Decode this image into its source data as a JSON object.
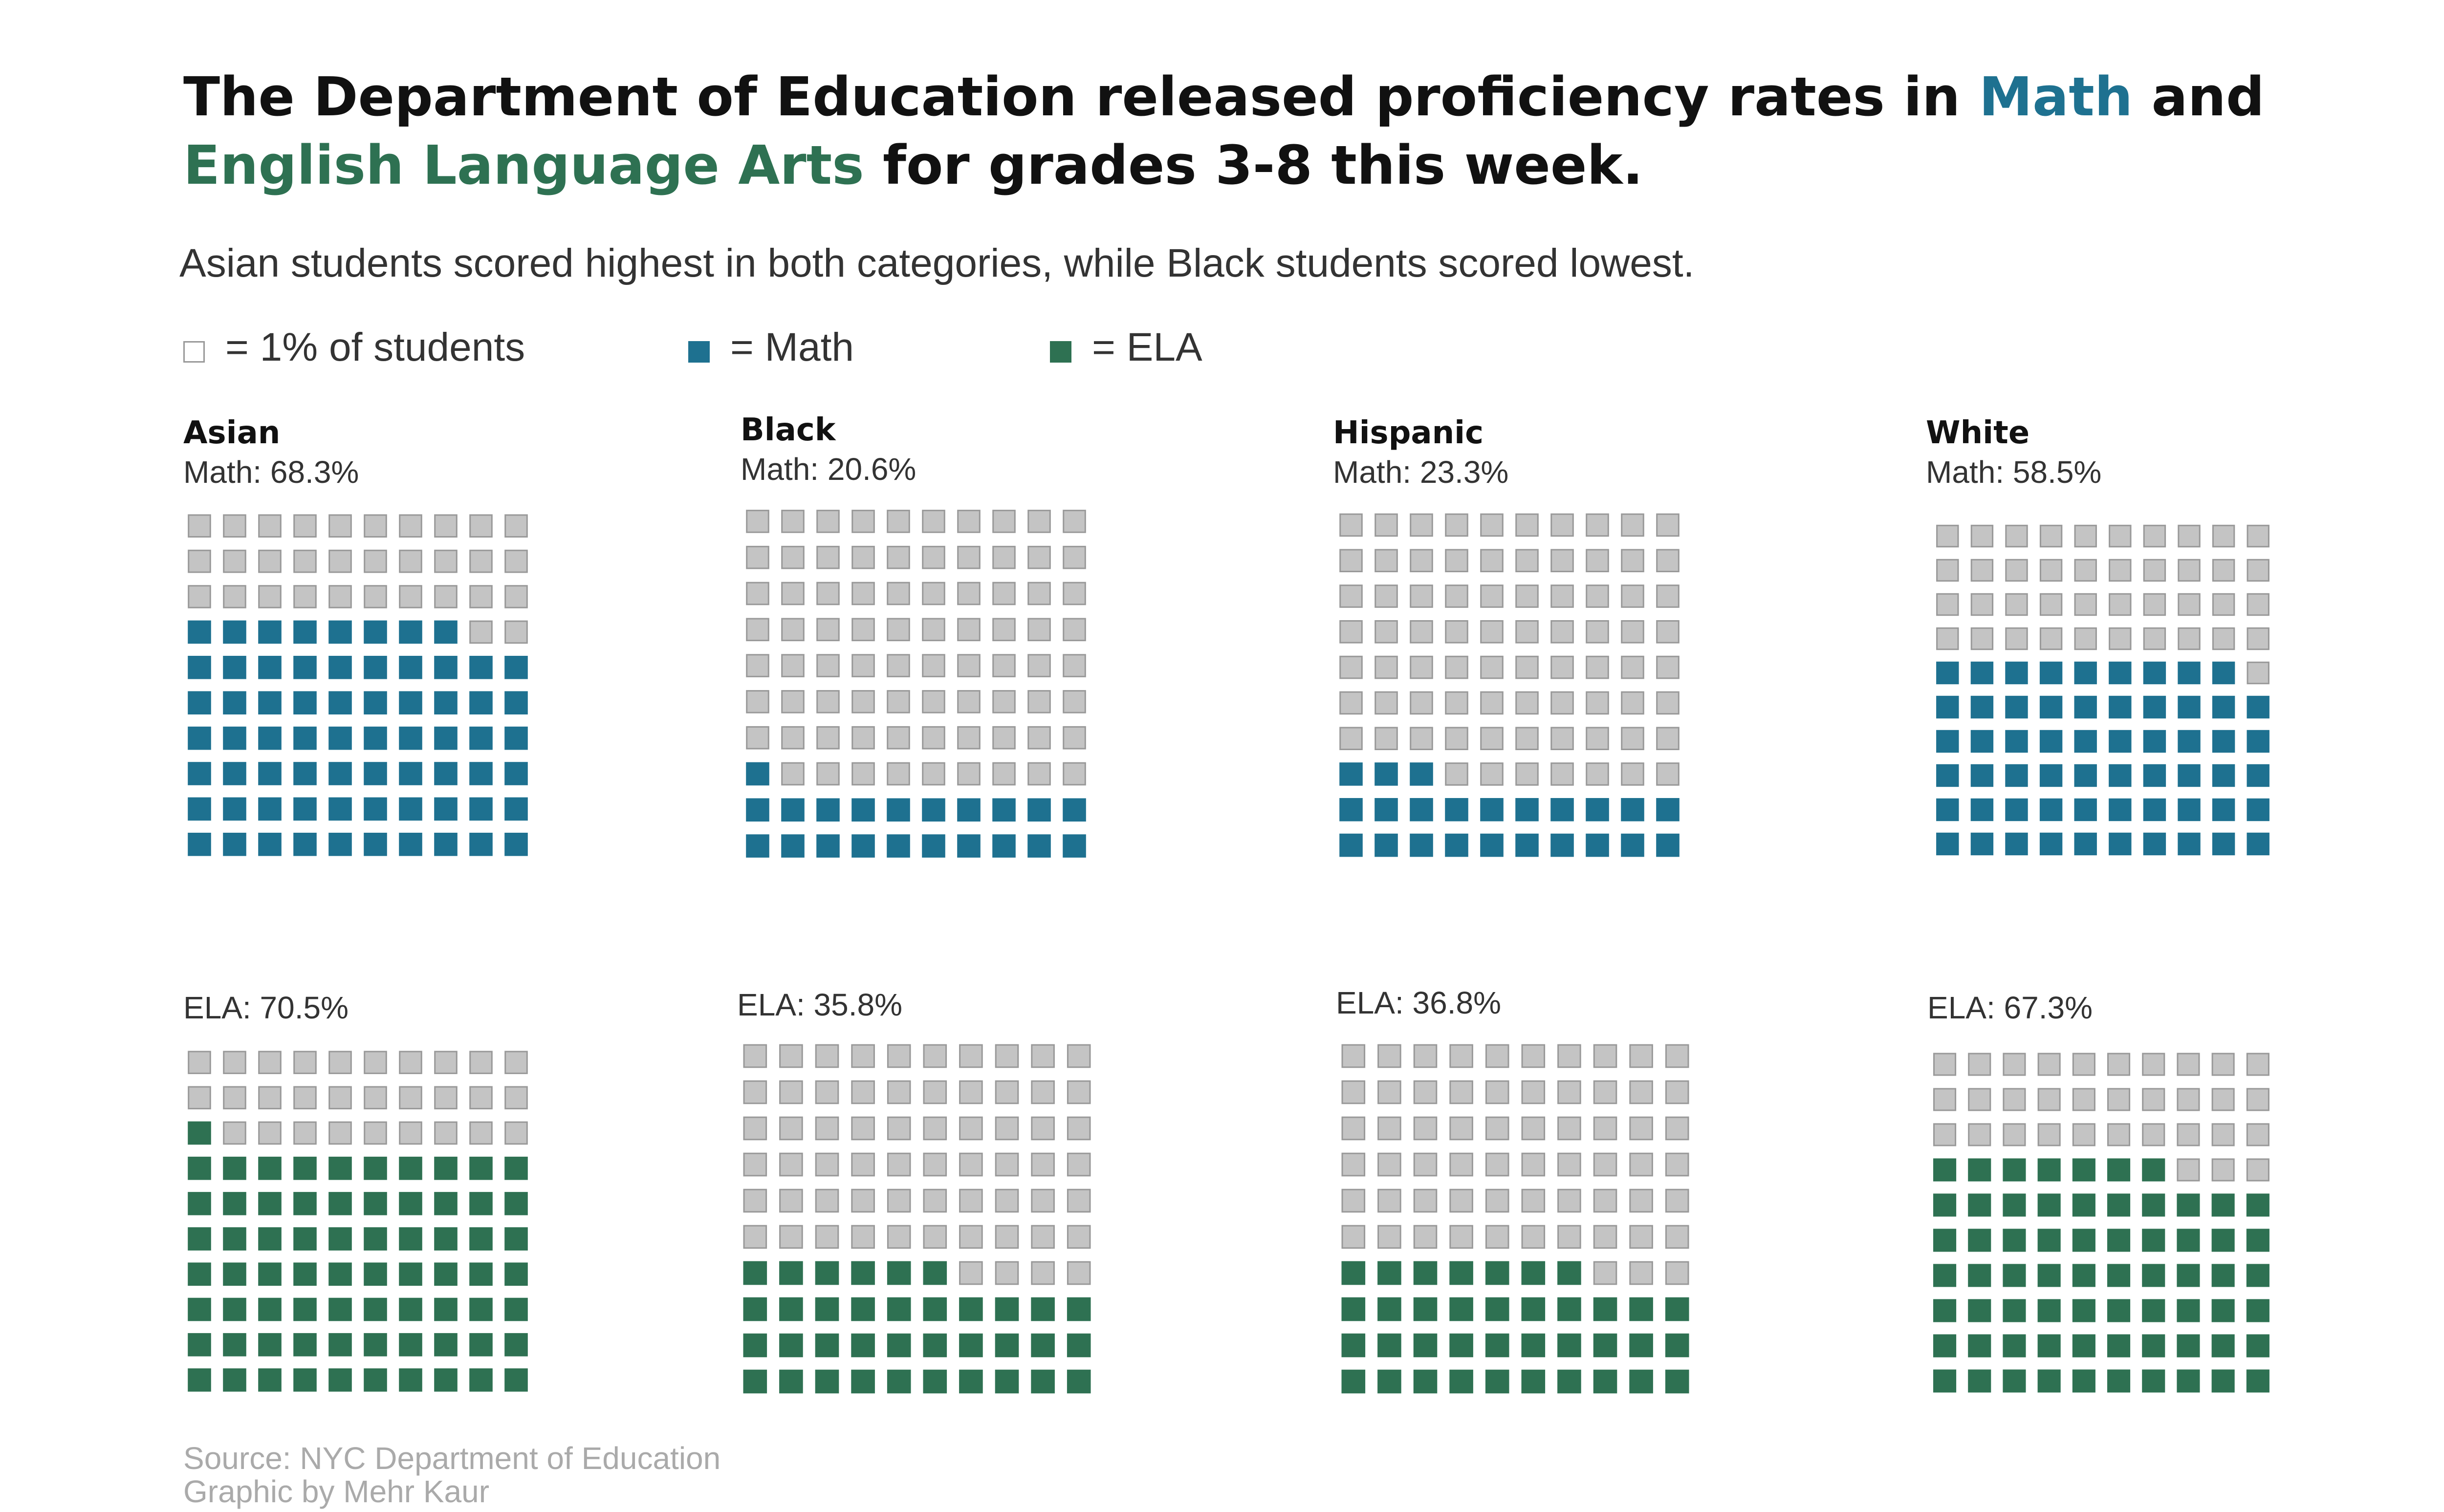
{
  "header": {
    "title_part1": "The Department of Education released proficiency rates in ",
    "title_math": "Math",
    "title_and": " and ",
    "title_ela": "English Language Arts",
    "title_part2": " for grades 3-8 this week.",
    "subtitle": "Asian students scored highest in both categories, while Black students scored lowest."
  },
  "legend": {
    "unit_label": "= 1% of students",
    "math_label": "= Math",
    "ela_label": "= ELA"
  },
  "colors": {
    "math": "#1e7190",
    "ela": "#2e7152",
    "empty": "#c4c4c4",
    "empty_border": "#999999"
  },
  "chart_data": {
    "type": "waffle",
    "cells_per_chart": 100,
    "groups": [
      {
        "name": "Asian",
        "math": 68.3,
        "ela": 70.5,
        "math_label": "Math: 68.3%",
        "ela_label": "ELA: 70.5%"
      },
      {
        "name": "Black",
        "math": 20.6,
        "ela": 35.8,
        "math_label": "Math: 20.6%",
        "ela_label": "ELA: 35.8%"
      },
      {
        "name": "Hispanic",
        "math": 23.3,
        "ela": 36.8,
        "math_label": "Math: 23.3%",
        "ela_label": "ELA: 36.8%"
      },
      {
        "name": "White",
        "math": 58.5,
        "ela": 67.3,
        "math_label": "Math: 58.5%",
        "ela_label": "ELA: 67.3%"
      }
    ]
  },
  "footer": {
    "source": "Source: NYC Department of Education",
    "credit": "Graphic by Mehr Kaur"
  }
}
